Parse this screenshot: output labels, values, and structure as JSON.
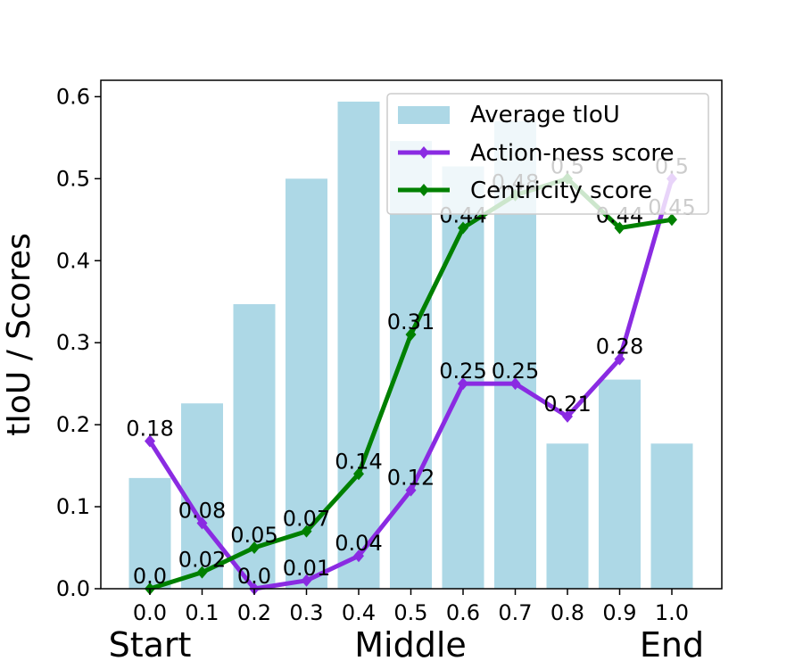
{
  "chart_data": {
    "type": "bar",
    "x": [
      0.0,
      0.1,
      0.2,
      0.3,
      0.4,
      0.5,
      0.6,
      0.7,
      0.8,
      0.9,
      1.0
    ],
    "x_tick_labels": [
      "0.0",
      "0.1",
      "0.2",
      "0.3",
      "0.4",
      "0.5",
      "0.6",
      "0.7",
      "0.8",
      "0.9",
      "1.0"
    ],
    "ylabel": "tIoU / Scores",
    "ylim": [
      0,
      0.62
    ],
    "y_ticks": [
      0.0,
      0.1,
      0.2,
      0.3,
      0.4,
      0.5,
      0.6
    ],
    "y_tick_labels": [
      "0.0",
      "0.1",
      "0.2",
      "0.3",
      "0.4",
      "0.5",
      "0.6"
    ],
    "position_labels": [
      "Start",
      "Middle",
      "End"
    ],
    "legend_position": "top-right",
    "grid": false,
    "series": [
      {
        "name": "Average tIoU",
        "type": "bar",
        "color": "#add8e6",
        "values": [
          0.135,
          0.226,
          0.347,
          0.5,
          0.594,
          0.546,
          0.515,
          0.57,
          0.177,
          0.255,
          0.177
        ]
      },
      {
        "name": "Action-ness score",
        "type": "line",
        "color": "#8a2be2",
        "marker": "diamond",
        "values": [
          0.18,
          0.08,
          0.0,
          0.01,
          0.04,
          0.12,
          0.25,
          0.25,
          0.21,
          0.28,
          0.5
        ],
        "labels": [
          "0.18",
          "0.08",
          "0.0",
          "0.01",
          "0.04",
          "0.12",
          "0.25",
          "0.25",
          "0.21",
          "0.28",
          "0.5"
        ]
      },
      {
        "name": "Centricity score",
        "type": "line",
        "color": "#008000",
        "marker": "diamond",
        "values": [
          0.0,
          0.02,
          0.05,
          0.07,
          0.14,
          0.31,
          0.44,
          0.48,
          0.5,
          0.44,
          0.45
        ],
        "labels": [
          "0.0",
          "0.02",
          "0.05",
          "0.07",
          "0.14",
          "0.31",
          "0.44",
          "0.48",
          "0.5",
          "0.44",
          "0.45"
        ]
      }
    ]
  }
}
